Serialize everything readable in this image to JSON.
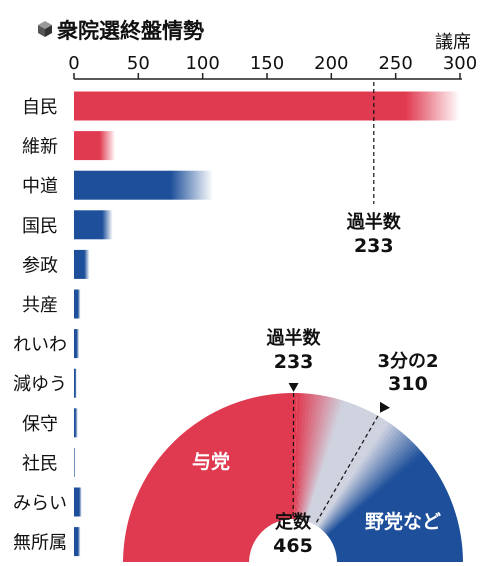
{
  "title": "衆院選終盤情勢",
  "title_icon": "cube-icon",
  "colors": {
    "ruling": "#e03a50",
    "opposition": "#1d4f9a",
    "uncertain": "#cfd3e0",
    "axis": "#222222"
  },
  "chart_data": [
    {
      "type": "bar",
      "orientation": "horizontal",
      "title": "衆院選終盤情勢",
      "xlabel": "議席",
      "xlim": [
        0,
        300
      ],
      "xticks": [
        0,
        50,
        100,
        150,
        200,
        250,
        300
      ],
      "categories": [
        "自民",
        "維新",
        "中道",
        "国民",
        "参政",
        "共産",
        "れいわ",
        "減ゆう",
        "保守",
        "社民",
        "みらい",
        "無所属"
      ],
      "bloc": [
        "ruling",
        "ruling",
        "opposition",
        "opposition",
        "opposition",
        "opposition",
        "opposition",
        "opposition",
        "opposition",
        "opposition",
        "opposition",
        "opposition"
      ],
      "lower": [
        258,
        20,
        75,
        22,
        8,
        3,
        2,
        1,
        1,
        0,
        4,
        3
      ],
      "upper": [
        300,
        32,
        108,
        30,
        12,
        5,
        4,
        2,
        3,
        1,
        6,
        5
      ],
      "reference_line": {
        "value": 233,
        "label": "過半数",
        "value_label": "233"
      }
    },
    {
      "type": "pie",
      "shape": "half-donut",
      "center_label": "定数",
      "total": 465,
      "total_label": "465",
      "segments": [
        {
          "name": "与党",
          "value": 278,
          "uncertain_margin": 42
        },
        {
          "name": "野党など",
          "value": 145,
          "uncertain_margin": 42
        }
      ],
      "markers": [
        {
          "label": "過半数",
          "value": 233,
          "value_label": "233",
          "style": "dashed"
        },
        {
          "label": "3分の2",
          "value": 310,
          "value_label": "310",
          "style": "dashed"
        }
      ]
    }
  ]
}
